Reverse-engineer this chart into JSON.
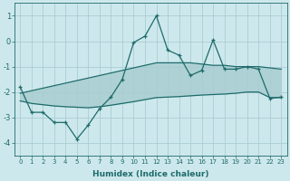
{
  "xlabel": "Humidex (Indice chaleur)",
  "ylabel": "",
  "bg_color": "#cde8ec",
  "grid_color": "#aacdd4",
  "line_color": "#1e6b6b",
  "x": [
    0,
    1,
    2,
    3,
    4,
    5,
    6,
    7,
    8,
    9,
    10,
    11,
    12,
    13,
    14,
    15,
    16,
    17,
    18,
    19,
    20,
    21,
    22,
    23
  ],
  "y_main": [
    -1.8,
    -2.8,
    -2.8,
    -3.2,
    -3.2,
    -3.85,
    -3.3,
    -2.65,
    -2.2,
    -1.5,
    -0.05,
    0.2,
    1.0,
    -0.35,
    -0.55,
    -1.35,
    -1.15,
    0.05,
    -1.1,
    -1.1,
    -1.0,
    -1.1,
    -2.25,
    -2.2
  ],
  "y_trend_upper": [
    -2.05,
    -1.95,
    -1.85,
    -1.75,
    -1.65,
    -1.55,
    -1.45,
    -1.35,
    -1.25,
    -1.15,
    -1.05,
    -0.95,
    -0.85,
    -0.85,
    -0.85,
    -0.85,
    -0.9,
    -0.95,
    -0.95,
    -1.0,
    -1.0,
    -1.0,
    -1.05,
    -1.1
  ],
  "y_trend_lower": [
    -2.35,
    -2.45,
    -2.5,
    -2.55,
    -2.58,
    -2.6,
    -2.62,
    -2.58,
    -2.52,
    -2.45,
    -2.38,
    -2.3,
    -2.22,
    -2.2,
    -2.18,
    -2.15,
    -2.12,
    -2.1,
    -2.08,
    -2.05,
    -2.0,
    -2.0,
    -2.22,
    -2.22
  ],
  "yticks": [
    1,
    0,
    -1,
    -2,
    -3,
    -4
  ],
  "ylim": [
    -4.5,
    1.5
  ],
  "xlim": [
    -0.5,
    23.5
  ]
}
